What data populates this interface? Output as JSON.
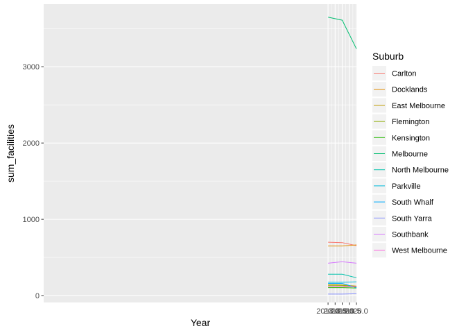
{
  "chart_data": {
    "type": "line",
    "title": "",
    "xlabel": "Year",
    "ylabel": "sum_facilities",
    "xlim": [
      1997.95,
      2020.05
    ],
    "ylim": [
      -90,
      3820
    ],
    "x_ticks": [
      "2018.0",
      "2018.5",
      "2019.0",
      "2019.5",
      "2020.0"
    ],
    "y_ticks": [
      "0",
      "1000",
      "2000",
      "3000"
    ],
    "grid": true,
    "legend_title": "Suburb",
    "legend_position": "right",
    "panel_background": "#ebebeb",
    "x": [
      2018,
      2019,
      2020
    ],
    "series": [
      {
        "name": "Carlton",
        "color": "#F8766D",
        "values": [
          700,
          695,
          655
        ]
      },
      {
        "name": "Docklands",
        "color": "#E18A00",
        "values": [
          650,
          650,
          665
        ]
      },
      {
        "name": "East Melbourne",
        "color": "#BE9C00",
        "values": [
          145,
          140,
          125
        ]
      },
      {
        "name": "Flemington",
        "color": "#8CAB00",
        "values": [
          130,
          130,
          118
        ]
      },
      {
        "name": "Kensington",
        "color": "#24B700",
        "values": [
          105,
          105,
          100
        ]
      },
      {
        "name": "Melbourne",
        "color": "#00BE70",
        "values": [
          3650,
          3610,
          3235
        ]
      },
      {
        "name": "North Melbourne",
        "color": "#00C1AB",
        "values": [
          280,
          280,
          235
        ]
      },
      {
        "name": "Parkville",
        "color": "#00BBDA",
        "values": [
          175,
          175,
          180
        ]
      },
      {
        "name": "South Whalf",
        "color": "#00ACFC",
        "values": [
          160,
          160,
          105
        ]
      },
      {
        "name": "South Yarra",
        "color": "#8B93FF",
        "values": [
          20,
          20,
          25
        ]
      },
      {
        "name": "Southbank",
        "color": "#D575FE",
        "values": [
          425,
          445,
          425
        ]
      },
      {
        "name": "West Melbourne",
        "color": "#F962DD",
        "values": [
          120,
          120,
          115
        ]
      }
    ]
  }
}
